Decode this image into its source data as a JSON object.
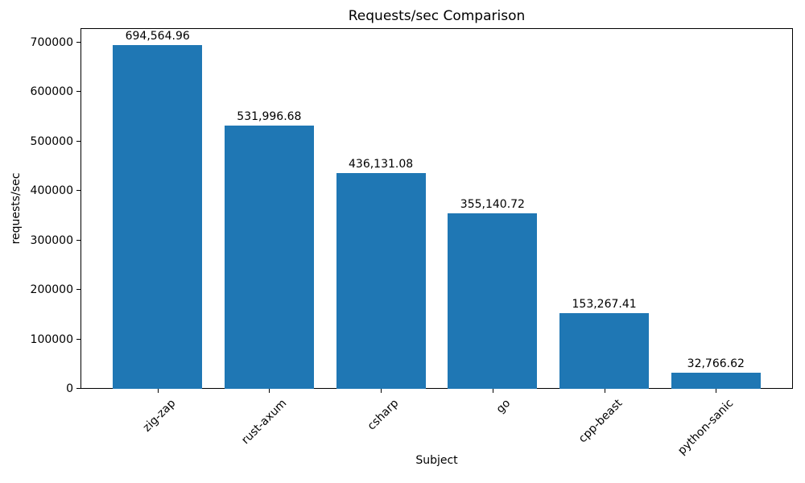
{
  "chart_data": {
    "type": "bar",
    "title": "Requests/sec Comparison",
    "xlabel": "Subject",
    "ylabel": "requests/sec",
    "categories": [
      "zig-zap",
      "rust-axum",
      "csharp",
      "go",
      "cpp-beast",
      "python-sanic"
    ],
    "values": [
      694564.96,
      531996.68,
      436131.08,
      355140.72,
      153267.41,
      32766.62
    ],
    "bar_labels": [
      "694,564.96",
      "531,996.68",
      "436,131.08",
      "355,140.72",
      "153,267.41",
      "32,766.62"
    ],
    "bar_color": "#1f77b4",
    "ylim": [
      0,
      729293
    ],
    "yticks": [
      0,
      100000,
      200000,
      300000,
      400000,
      500000,
      600000,
      700000
    ],
    "ytick_labels": [
      "0",
      "100000",
      "200000",
      "300000",
      "400000",
      "500000",
      "600000",
      "700000"
    ],
    "x_tick_rotation": 45,
    "grid": false,
    "legend": null
  }
}
